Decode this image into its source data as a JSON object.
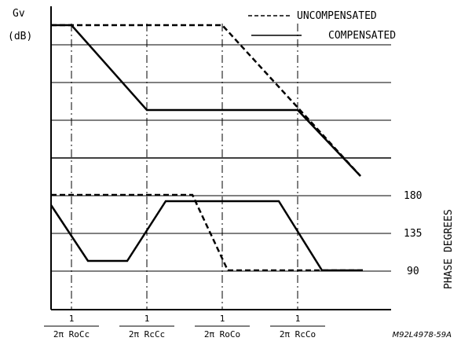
{
  "chart_data": [
    {
      "type": "line",
      "ylabel_line1": "Gv",
      "ylabel_line2": "(dB)",
      "legend": [
        "UNCOMPENSATED",
        "COMPENSATED"
      ],
      "legend_placement": "top-right",
      "x_ticks": [
        {
          "num": "1",
          "den": "2π RoCc"
        },
        {
          "num": "1",
          "den": "2π RcCc"
        },
        {
          "num": "1",
          "den": "2π RoCo"
        },
        {
          "num": "1",
          "den": "2π RcCo"
        }
      ],
      "series": [
        {
          "name": "UNCOMPENSATED",
          "style": "dashed",
          "points": [
            [
              0,
              0
            ],
            [
              2,
              0
            ],
            [
              4,
              -4
            ]
          ]
        },
        {
          "name": "COMPENSATED",
          "style": "solid",
          "points": [
            [
              0,
              0
            ],
            [
              0.25,
              0
            ],
            [
              1,
              -2.25
            ],
            [
              3,
              -2.25
            ],
            [
              3.8,
              -4
            ]
          ]
        }
      ]
    },
    {
      "type": "line",
      "ylabel": "PHASE DEGREES",
      "y_ticks": [
        "180",
        "135",
        "90"
      ],
      "series": [
        {
          "name": "UNCOMPENSATED",
          "style": "dashed",
          "points": [
            [
              -0.25,
              180
            ],
            [
              1.6,
              180
            ],
            [
              2.05,
              90
            ],
            [
              4.6,
              90
            ]
          ]
        },
        {
          "name": "COMPENSATED",
          "style": "solid",
          "points": [
            [
              -0.25,
              172
            ],
            [
              0.15,
              103
            ],
            [
              0.55,
              103
            ],
            [
              0.95,
              172
            ],
            [
              2.7,
              172
            ],
            [
              3,
              90
            ],
            [
              4.6,
              90
            ]
          ]
        }
      ]
    }
  ],
  "figure_code": "M92L4978-59A"
}
